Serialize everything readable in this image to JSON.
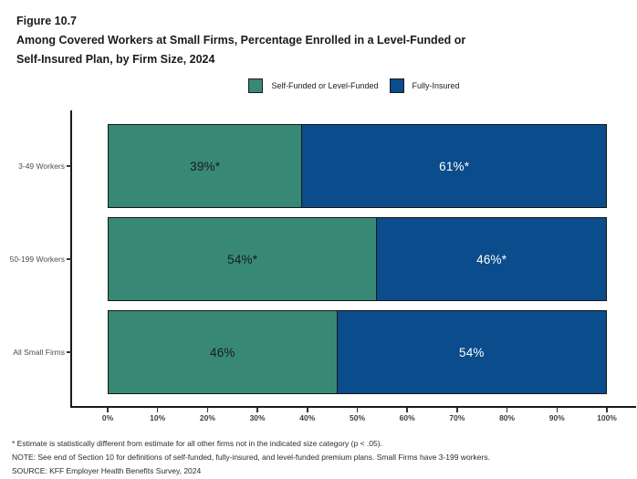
{
  "header": {
    "figure_label": "Figure 10.7",
    "title_line1": "Among Covered Workers at Small Firms, Percentage Enrolled in a Level-Funded or",
    "title_line2": "Self-Insured Plan, by Firm Size, 2024"
  },
  "legend": {
    "items": [
      {
        "label": "Self-Funded or Level-Funded",
        "color": "#378976"
      },
      {
        "label": "Fully-Insured",
        "color": "#0B4C8C"
      }
    ]
  },
  "chart_data": {
    "type": "bar",
    "orientation": "horizontal",
    "stacked": true,
    "title": "Figure 10.7: Among Covered Workers at Small Firms, Percentage Enrolled in a Level-Funded or Self-Insured Plan, by Firm Size, 2024",
    "categories": [
      "3-49 Workers",
      "50-199 Workers",
      "All Small Firms"
    ],
    "series": [
      {
        "name": "Self-Funded or Level-Funded",
        "color": "#378976",
        "label_color": "#1a1a1a",
        "values": [
          39,
          54,
          46
        ],
        "labels": [
          "39%*",
          "54%*",
          "46%"
        ]
      },
      {
        "name": "Fully-Insured",
        "color": "#0B4C8C",
        "label_color": "#ffffff",
        "values": [
          61,
          46,
          54
        ],
        "labels": [
          "61%*",
          "46%*",
          "54%"
        ]
      }
    ],
    "xlabel": "",
    "ylabel": "",
    "xlim": [
      0,
      100
    ],
    "x_ticks": [
      "0%",
      "10%",
      "20%",
      "30%",
      "40%",
      "50%",
      "60%",
      "70%",
      "80%",
      "90%",
      "100%"
    ],
    "grid": false,
    "legend_position": "top-center"
  },
  "footnotes": {
    "asterisk": "* Estimate is statistically different from estimate for all other firms not in the indicated size category (p < .05).",
    "note": "NOTE: See end of Section 10 for definitions of self-funded, fully-insured, and level-funded premium plans. Small Firms have 3-199 workers.",
    "source": "SOURCE: KFF Employer Health Benefits Survey, 2024"
  }
}
